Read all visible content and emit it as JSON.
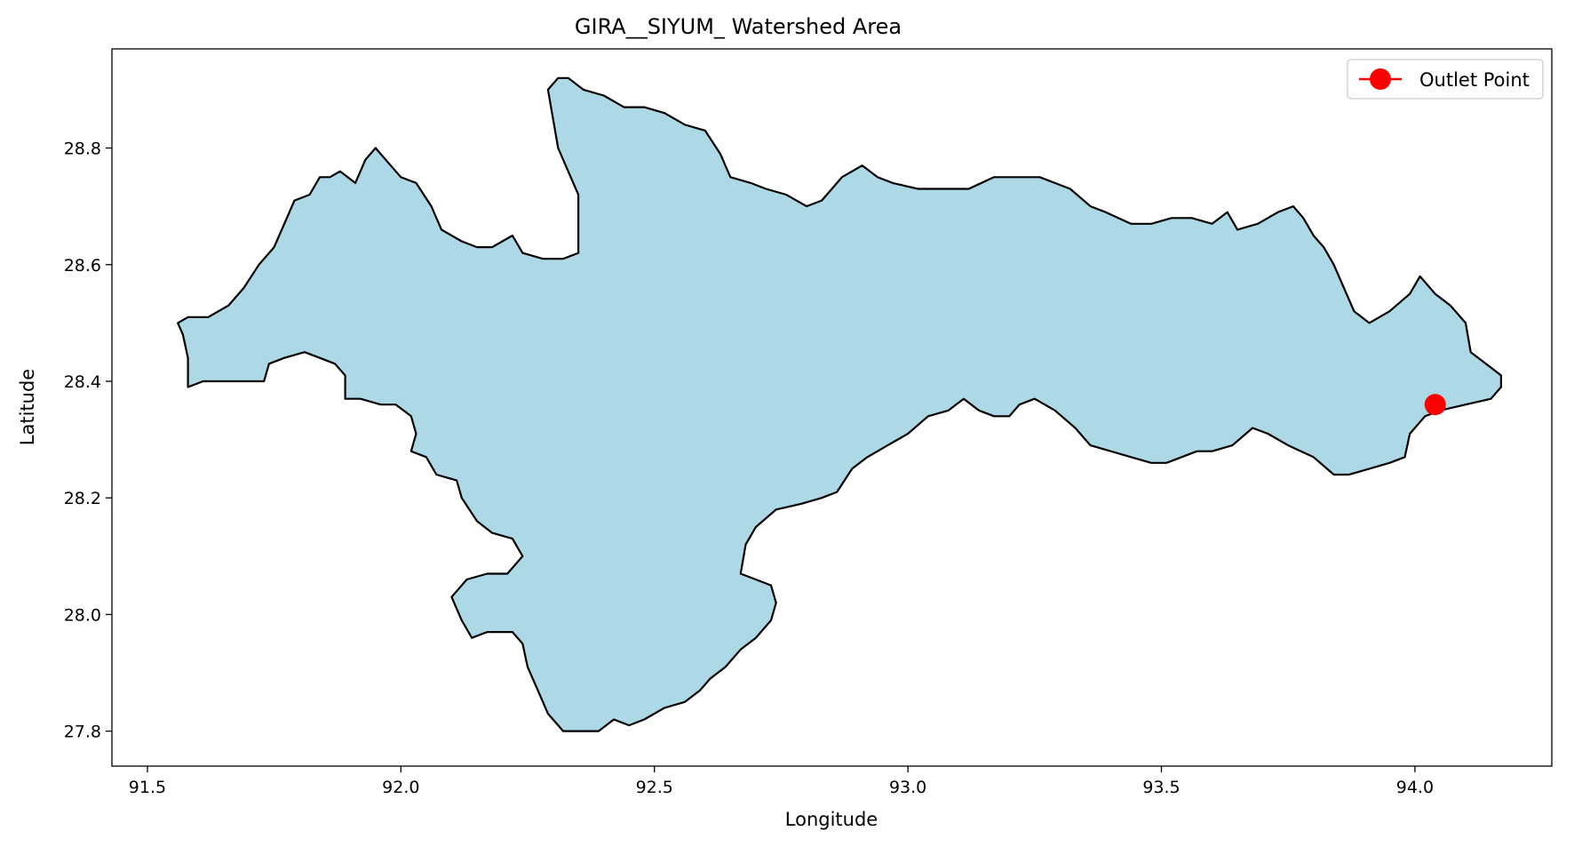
{
  "chart_data": {
    "type": "map",
    "title": "GIRA__SIYUM_ Watershed Area",
    "xlabel": "Longitude",
    "ylabel": "Latitude",
    "xlim": [
      91.43,
      94.27
    ],
    "ylim": [
      27.74,
      28.97
    ],
    "xticks": [
      91.5,
      92.0,
      92.5,
      93.0,
      93.5,
      94.0
    ],
    "xtick_labels": [
      "91.5",
      "92.0",
      "92.5",
      "93.0",
      "93.5",
      "94.0"
    ],
    "yticks": [
      27.8,
      28.0,
      28.2,
      28.4,
      28.6,
      28.8
    ],
    "ytick_labels": [
      "27.8",
      "28.0",
      "28.2",
      "28.4",
      "28.6",
      "28.8"
    ],
    "watershed": {
      "fill": "#add8e6",
      "edge": "#000000",
      "boundary": [
        [
          91.56,
          28.5
        ],
        [
          91.58,
          28.51
        ],
        [
          91.62,
          28.51
        ],
        [
          91.66,
          28.53
        ],
        [
          91.69,
          28.56
        ],
        [
          91.72,
          28.6
        ],
        [
          91.75,
          28.63
        ],
        [
          91.77,
          28.67
        ],
        [
          91.79,
          28.71
        ],
        [
          91.82,
          28.72
        ],
        [
          91.84,
          28.75
        ],
        [
          91.86,
          28.75
        ],
        [
          91.88,
          28.76
        ],
        [
          91.91,
          28.74
        ],
        [
          91.93,
          28.78
        ],
        [
          91.95,
          28.8
        ],
        [
          91.97,
          28.78
        ],
        [
          92.0,
          28.75
        ],
        [
          92.03,
          28.74
        ],
        [
          92.06,
          28.7
        ],
        [
          92.08,
          28.66
        ],
        [
          92.12,
          28.64
        ],
        [
          92.15,
          28.63
        ],
        [
          92.18,
          28.63
        ],
        [
          92.22,
          28.65
        ],
        [
          92.24,
          28.62
        ],
        [
          92.28,
          28.61
        ],
        [
          92.32,
          28.61
        ],
        [
          92.35,
          28.62
        ],
        [
          92.35,
          28.66
        ],
        [
          92.35,
          28.72
        ],
        [
          92.33,
          28.76
        ],
        [
          92.31,
          28.8
        ],
        [
          92.3,
          28.85
        ],
        [
          92.29,
          28.9
        ],
        [
          92.31,
          28.92
        ],
        [
          92.33,
          28.92
        ],
        [
          92.36,
          28.9
        ],
        [
          92.4,
          28.89
        ],
        [
          92.44,
          28.87
        ],
        [
          92.48,
          28.87
        ],
        [
          92.52,
          28.86
        ],
        [
          92.56,
          28.84
        ],
        [
          92.6,
          28.83
        ],
        [
          92.63,
          28.79
        ],
        [
          92.65,
          28.75
        ],
        [
          92.69,
          28.74
        ],
        [
          92.72,
          28.73
        ],
        [
          92.76,
          28.72
        ],
        [
          92.8,
          28.7
        ],
        [
          92.83,
          28.71
        ],
        [
          92.87,
          28.75
        ],
        [
          92.91,
          28.77
        ],
        [
          92.94,
          28.75
        ],
        [
          92.97,
          28.74
        ],
        [
          93.02,
          28.73
        ],
        [
          93.07,
          28.73
        ],
        [
          93.12,
          28.73
        ],
        [
          93.17,
          28.75
        ],
        [
          93.21,
          28.75
        ],
        [
          93.26,
          28.75
        ],
        [
          93.29,
          28.74
        ],
        [
          93.32,
          28.73
        ],
        [
          93.36,
          28.7
        ],
        [
          93.39,
          28.69
        ],
        [
          93.44,
          28.67
        ],
        [
          93.48,
          28.67
        ],
        [
          93.52,
          28.68
        ],
        [
          93.56,
          28.68
        ],
        [
          93.6,
          28.67
        ],
        [
          93.63,
          28.69
        ],
        [
          93.65,
          28.66
        ],
        [
          93.69,
          28.67
        ],
        [
          93.73,
          28.69
        ],
        [
          93.76,
          28.7
        ],
        [
          93.78,
          28.68
        ],
        [
          93.8,
          28.65
        ],
        [
          93.82,
          28.63
        ],
        [
          93.84,
          28.6
        ],
        [
          93.86,
          28.56
        ],
        [
          93.88,
          28.52
        ],
        [
          93.91,
          28.5
        ],
        [
          93.95,
          28.52
        ],
        [
          93.99,
          28.55
        ],
        [
          94.01,
          28.58
        ],
        [
          94.04,
          28.55
        ],
        [
          94.07,
          28.53
        ],
        [
          94.1,
          28.5
        ],
        [
          94.11,
          28.45
        ],
        [
          94.14,
          28.43
        ],
        [
          94.17,
          28.41
        ],
        [
          94.17,
          28.39
        ],
        [
          94.15,
          28.37
        ],
        [
          94.1,
          28.36
        ],
        [
          94.05,
          28.35
        ],
        [
          94.02,
          28.34
        ],
        [
          93.99,
          28.31
        ],
        [
          93.98,
          28.27
        ],
        [
          93.95,
          28.26
        ],
        [
          93.91,
          28.25
        ],
        [
          93.87,
          28.24
        ],
        [
          93.84,
          28.24
        ],
        [
          93.8,
          28.27
        ],
        [
          93.75,
          28.29
        ],
        [
          93.71,
          28.31
        ],
        [
          93.68,
          28.32
        ],
        [
          93.64,
          28.29
        ],
        [
          93.6,
          28.28
        ],
        [
          93.57,
          28.28
        ],
        [
          93.54,
          28.27
        ],
        [
          93.51,
          28.26
        ],
        [
          93.48,
          28.26
        ],
        [
          93.44,
          28.27
        ],
        [
          93.4,
          28.28
        ],
        [
          93.36,
          28.29
        ],
        [
          93.33,
          28.32
        ],
        [
          93.29,
          28.35
        ],
        [
          93.25,
          28.37
        ],
        [
          93.22,
          28.36
        ],
        [
          93.2,
          28.34
        ],
        [
          93.17,
          28.34
        ],
        [
          93.14,
          28.35
        ],
        [
          93.11,
          28.37
        ],
        [
          93.08,
          28.35
        ],
        [
          93.04,
          28.34
        ],
        [
          93.0,
          28.31
        ],
        [
          92.96,
          28.29
        ],
        [
          92.92,
          28.27
        ],
        [
          92.89,
          28.25
        ],
        [
          92.86,
          28.21
        ],
        [
          92.83,
          28.2
        ],
        [
          92.79,
          28.19
        ],
        [
          92.74,
          28.18
        ],
        [
          92.7,
          28.15
        ],
        [
          92.68,
          28.12
        ],
        [
          92.67,
          28.07
        ],
        [
          92.7,
          28.06
        ],
        [
          92.73,
          28.05
        ],
        [
          92.74,
          28.02
        ],
        [
          92.73,
          27.99
        ],
        [
          92.7,
          27.96
        ],
        [
          92.67,
          27.94
        ],
        [
          92.64,
          27.91
        ],
        [
          92.61,
          27.89
        ],
        [
          92.59,
          27.87
        ],
        [
          92.56,
          27.85
        ],
        [
          92.52,
          27.84
        ],
        [
          92.48,
          27.82
        ],
        [
          92.45,
          27.81
        ],
        [
          92.42,
          27.82
        ],
        [
          92.39,
          27.8
        ],
        [
          92.35,
          27.8
        ],
        [
          92.32,
          27.8
        ],
        [
          92.29,
          27.83
        ],
        [
          92.27,
          27.87
        ],
        [
          92.25,
          27.91
        ],
        [
          92.24,
          27.95
        ],
        [
          92.22,
          27.97
        ],
        [
          92.17,
          27.97
        ],
        [
          92.14,
          27.96
        ],
        [
          92.12,
          27.99
        ],
        [
          92.1,
          28.03
        ],
        [
          92.13,
          28.06
        ],
        [
          92.17,
          28.07
        ],
        [
          92.21,
          28.07
        ],
        [
          92.24,
          28.1
        ],
        [
          92.22,
          28.13
        ],
        [
          92.18,
          28.14
        ],
        [
          92.15,
          28.16
        ],
        [
          92.12,
          28.2
        ],
        [
          92.11,
          28.23
        ],
        [
          92.07,
          28.24
        ],
        [
          92.05,
          28.27
        ],
        [
          92.02,
          28.28
        ],
        [
          92.03,
          28.31
        ],
        [
          92.02,
          28.34
        ],
        [
          91.99,
          28.36
        ],
        [
          91.96,
          28.36
        ],
        [
          91.92,
          28.37
        ],
        [
          91.89,
          28.37
        ],
        [
          91.89,
          28.41
        ],
        [
          91.87,
          28.43
        ],
        [
          91.84,
          28.44
        ],
        [
          91.81,
          28.45
        ],
        [
          91.77,
          28.44
        ],
        [
          91.74,
          28.43
        ],
        [
          91.73,
          28.4
        ],
        [
          91.69,
          28.4
        ],
        [
          91.65,
          28.4
        ],
        [
          91.61,
          28.4
        ],
        [
          91.58,
          28.39
        ],
        [
          91.58,
          28.44
        ],
        [
          91.57,
          28.48
        ],
        [
          91.56,
          28.5
        ]
      ]
    },
    "series": [
      {
        "name": "Outlet Point",
        "type": "marker",
        "color": "#ff0000",
        "x": 94.04,
        "y": 28.36
      }
    ],
    "legend": "top-right",
    "grid": false
  }
}
